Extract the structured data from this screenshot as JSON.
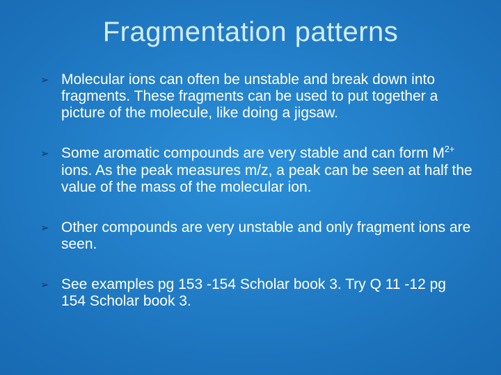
{
  "slide": {
    "title": "Fragmentation patterns",
    "bullet_glyph": "➢",
    "bullets": [
      "Molecular ions can often be unstable and break down into fragments. These fragments can be used to put together a picture of the molecule, like doing a jigsaw.",
      "Some aromatic compounds are very stable and can form M<sup>2+</sup> ions. As the peak measures m/z, a peak can be seen at half the value of the mass of the molecular ion.",
      "Other compounds are very unstable and only fragment ions are seen.",
      "See examples pg 153 -154 Scholar book 3. Try Q 11 -12 pg 154 Scholar book 3."
    ],
    "colors": {
      "background_center": "#2b8fd9",
      "background_edge": "#0d5a9e",
      "title_color": "#d4ecfb",
      "text_color": "#ffffff",
      "bullet_color": "#0b3a6a"
    },
    "typography": {
      "title_fontsize": 40,
      "body_fontsize": 21,
      "font_family": "Arial"
    }
  }
}
